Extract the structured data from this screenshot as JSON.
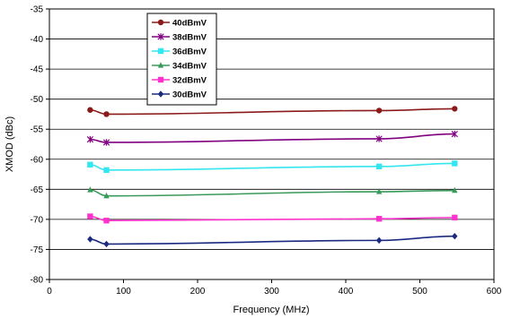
{
  "chart_data": {
    "type": "line",
    "xlabel": "Frequency (MHz)",
    "ylabel": "XMOD (dBc)",
    "xlim": [
      0,
      600
    ],
    "ylim": [
      -80,
      -35
    ],
    "xticks": [
      0,
      100,
      200,
      300,
      400,
      500,
      600
    ],
    "yticks": [
      -35,
      -40,
      -45,
      -50,
      -55,
      -60,
      -65,
      -70,
      -75,
      -80
    ],
    "grid": "horizontal",
    "legend_position": "top-left",
    "series": [
      {
        "name": "40dBmV",
        "color": "#8B1A1A",
        "marker": "circle",
        "x": [
          55,
          77,
          445,
          547
        ],
        "y": [
          -51.8,
          -52.5,
          -51.9,
          -51.6
        ]
      },
      {
        "name": "38dBmV",
        "color": "#800080",
        "marker": "star",
        "x": [
          55,
          77,
          445,
          547
        ],
        "y": [
          -56.7,
          -57.2,
          -56.6,
          -55.8
        ]
      },
      {
        "name": "36dBmV",
        "color": "#33E6F0",
        "marker": "square",
        "x": [
          55,
          77,
          445,
          547
        ],
        "y": [
          -60.9,
          -61.8,
          -61.2,
          -60.7
        ]
      },
      {
        "name": "34dBmV",
        "color": "#3A9A5A",
        "marker": "triangle",
        "x": [
          55,
          77,
          445,
          547
        ],
        "y": [
          -65.1,
          -66.1,
          -65.4,
          -65.2
        ]
      },
      {
        "name": "32dBmV",
        "color": "#FF33CC",
        "marker": "square",
        "x": [
          55,
          77,
          445,
          547
        ],
        "y": [
          -69.5,
          -70.2,
          -69.9,
          -69.7
        ]
      },
      {
        "name": "30dBmV",
        "color": "#1A2A80",
        "marker": "diamond",
        "x": [
          55,
          77,
          445,
          547
        ],
        "y": [
          -73.3,
          -74.1,
          -73.5,
          -72.8
        ]
      }
    ]
  }
}
